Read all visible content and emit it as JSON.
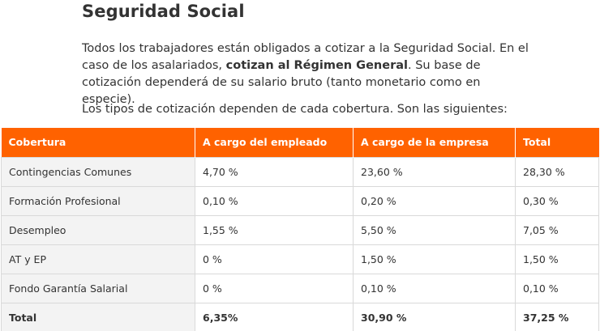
{
  "section": {
    "title": "Seguridad Social",
    "intro_line1_before": "Todos los trabajadores están obligados a cotizar a la Seguridad Social. En el caso de los asalariados, ",
    "intro_bold": "cotizan al Régimen General",
    "intro_after": ". Su base de cotización dependerá de su salario bruto (tanto monetario como en especie).",
    "lead": "Los tipos de cotización dependen de cada cobertura. Son las siguientes:"
  },
  "table": {
    "headers": [
      "Cobertura",
      "A cargo del empleado",
      "A cargo de la empresa",
      "Total"
    ],
    "rows": [
      [
        "Contingencias Comunes",
        "4,70 %",
        "23,60 %",
        "28,30 %"
      ],
      [
        "Formación Profesional",
        "0,10 %",
        "0,20 %",
        "0,30 %"
      ],
      [
        "Desempleo",
        "1,55 %",
        "5,50 %",
        "7,05 %"
      ],
      [
        "AT y EP",
        "0 %",
        "1,50 %",
        "1,50 %"
      ],
      [
        "Fondo Garantía Salarial",
        "0 %",
        "0,10 %",
        "0,10 %"
      ]
    ],
    "total": [
      "Total",
      "6,35%",
      "30,90 %",
      "37,25 %"
    ],
    "header_color": "#ff6200"
  }
}
